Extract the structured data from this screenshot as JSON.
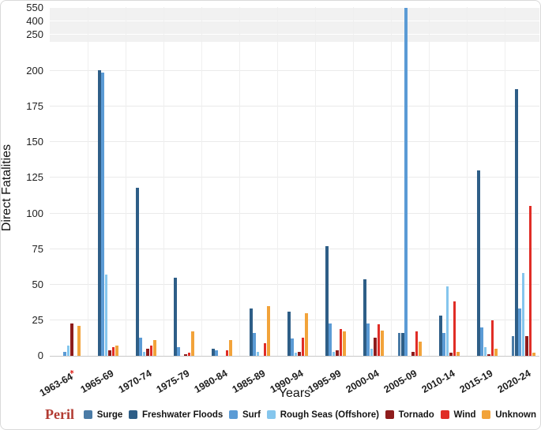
{
  "figure": {
    "y_axis_label": "Direct Fatalities",
    "x_axis_label": "Years",
    "asterisk_marker": "*"
  },
  "legend": {
    "title": "Peril",
    "title_color": "#b23b32",
    "items": [
      {
        "label": "Surge",
        "color": "#4a7ba6"
      },
      {
        "label": "Freshwater Floods",
        "color": "#2e5e87"
      },
      {
        "label": "Surf",
        "color": "#5b9bd5"
      },
      {
        "label": "Rough Seas (Offshore)",
        "color": "#85c6ed"
      },
      {
        "label": "Tornado",
        "color": "#8e1c1c"
      },
      {
        "label": "Wind",
        "color": "#e02d26"
      },
      {
        "label": "Unknown",
        "color": "#f2a33a"
      }
    ]
  },
  "chart_data": {
    "type": "bar",
    "title": "",
    "xlabel": "Years",
    "ylabel": "Direct Fatalities",
    "categories": [
      "1963-64*",
      "1965-69",
      "1970-74",
      "1975-79",
      "1980-84",
      "1985-89",
      "1990-94",
      "1995-99",
      "2000-04",
      "2005-09",
      "2010-14",
      "2015-19",
      "2020-24"
    ],
    "series": [
      {
        "name": "Surge",
        "color": "#4a7ba6",
        "values": [
          0,
          0,
          0,
          0,
          0,
          0,
          0,
          0,
          0,
          16,
          0,
          0,
          14
        ]
      },
      {
        "name": "Freshwater Floods",
        "color": "#2e5e87",
        "values": [
          0,
          201,
          118,
          55,
          5,
          33,
          31,
          77,
          54,
          16,
          28,
          130,
          187
        ]
      },
      {
        "name": "Surf",
        "color": "#5b9bd5",
        "values": [
          3,
          199,
          13,
          6,
          4,
          16,
          12,
          23,
          23,
          550,
          16,
          20,
          33
        ]
      },
      {
        "name": "Rough Seas (Offshore)",
        "color": "#85c6ed",
        "values": [
          7,
          57,
          3,
          0,
          0,
          3,
          2,
          3,
          5,
          0,
          49,
          6,
          58
        ]
      },
      {
        "name": "Tornado",
        "color": "#8e1c1c",
        "values": [
          23,
          4,
          5,
          1,
          0,
          0,
          3,
          4,
          13,
          3,
          2,
          1,
          14
        ]
      },
      {
        "name": "Wind",
        "color": "#e02d26",
        "values": [
          0,
          6,
          7,
          2,
          4,
          9,
          13,
          19,
          22,
          17,
          38,
          25,
          105
        ]
      },
      {
        "name": "Unknown",
        "color": "#f2a33a",
        "values": [
          21,
          7,
          11,
          17,
          11,
          35,
          30,
          17,
          18,
          10,
          3,
          5,
          2
        ]
      }
    ],
    "y_ticks": [
      0,
      25,
      50,
      75,
      100,
      125,
      150,
      175,
      200,
      250,
      400,
      550
    ],
    "y_scale": "linear to 200, compressed above (250/400/550 squeezed near top)",
    "ylim": [
      0,
      550
    ],
    "grid": true,
    "legend_position": "bottom",
    "annotations": [
      "first category carries a red asterisk"
    ]
  }
}
